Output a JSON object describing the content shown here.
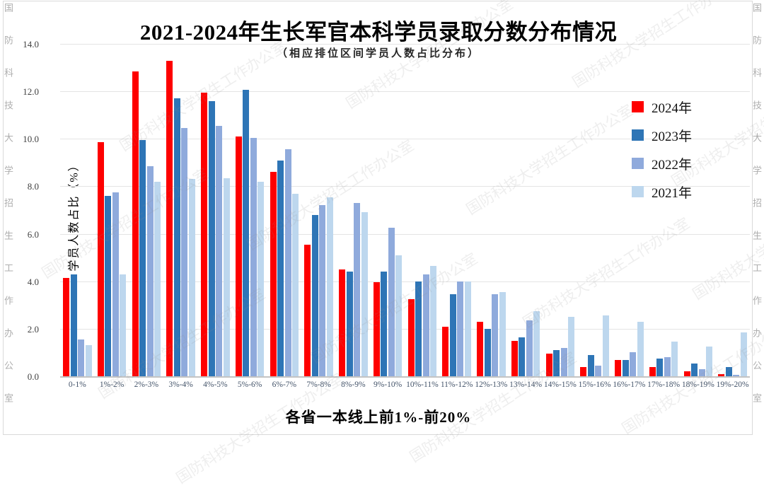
{
  "watermark": {
    "text": "国防科技大学招生工作办公室"
  },
  "chart_data": {
    "type": "bar",
    "title": "2021-2024年生长军官本科学员录取分数分布情况",
    "subtitle": "（相应排位区间学员人数占比分布）",
    "xlabel": "各省一本线上前1%-前20%",
    "ylabel": "学员人数占比（%）",
    "ylim": [
      0,
      14
    ],
    "ytick_step": 2,
    "yticks": [
      "0.0",
      "2.0",
      "4.0",
      "6.0",
      "8.0",
      "10.0",
      "12.0",
      "14.0"
    ],
    "grid": "horizontal",
    "legend_position": "top-right",
    "categories": [
      "0-1%",
      "1%-2%",
      "2%-3%",
      "3%-4%",
      "4%-5%",
      "5%-6%",
      "6%-7%",
      "7%-8%",
      "8%-9%",
      "9%-10%",
      "10%-11%",
      "11%-12%",
      "12%-13%",
      "13%-14%",
      "14%-15%",
      "15%-16%",
      "16%-17%",
      "17%-18%",
      "18%-19%",
      "19%-20%"
    ],
    "series": [
      {
        "name": "2024年",
        "color": "#fe0000",
        "values": [
          4.15,
          9.85,
          12.85,
          13.3,
          11.95,
          10.1,
          8.6,
          5.55,
          4.5,
          3.95,
          3.25,
          2.1,
          2.3,
          1.5,
          0.95,
          0.4,
          0.7,
          0.4,
          0.2,
          0.1
        ]
      },
      {
        "name": "2023年",
        "color": "#2e75b6",
        "values": [
          4.3,
          7.6,
          9.95,
          11.7,
          11.6,
          12.05,
          9.1,
          6.8,
          4.4,
          4.4,
          4.0,
          3.45,
          2.0,
          1.65,
          1.1,
          0.9,
          0.7,
          0.75,
          0.55,
          0.4
        ]
      },
      {
        "name": "2022年",
        "color": "#8faadc",
        "values": [
          1.55,
          7.75,
          8.85,
          10.45,
          10.55,
          10.05,
          9.55,
          7.2,
          7.3,
          6.25,
          4.3,
          4.0,
          3.45,
          2.35,
          1.2,
          0.45,
          1.0,
          0.8,
          0.3,
          0.05
        ]
      },
      {
        "name": "2021年",
        "color": "#bdd7ee",
        "values": [
          1.3,
          4.3,
          8.2,
          8.3,
          8.35,
          8.2,
          7.7,
          7.55,
          6.9,
          5.1,
          4.65,
          4.0,
          3.55,
          2.75,
          2.5,
          2.55,
          2.3,
          1.45,
          1.25,
          1.85
        ]
      }
    ]
  }
}
